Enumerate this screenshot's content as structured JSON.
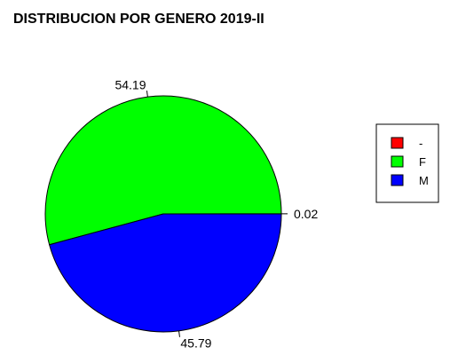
{
  "chart_data": {
    "type": "pie",
    "title": "DISTRIBUCION POR GENERO 2019-II",
    "start_angle_deg": 0,
    "direction": "counterclockwise",
    "slices": [
      {
        "label": "-",
        "value": 0.02,
        "value_label": "0.02",
        "color": "#ff0000"
      },
      {
        "label": "F",
        "value": 54.19,
        "value_label": "54.19",
        "color": "#00ff00"
      },
      {
        "label": "M",
        "value": 45.79,
        "value_label": "45.79",
        "color": "#0000ff"
      }
    ],
    "legend": {
      "placement": "right",
      "items": [
        "-",
        "F",
        "M"
      ]
    }
  }
}
